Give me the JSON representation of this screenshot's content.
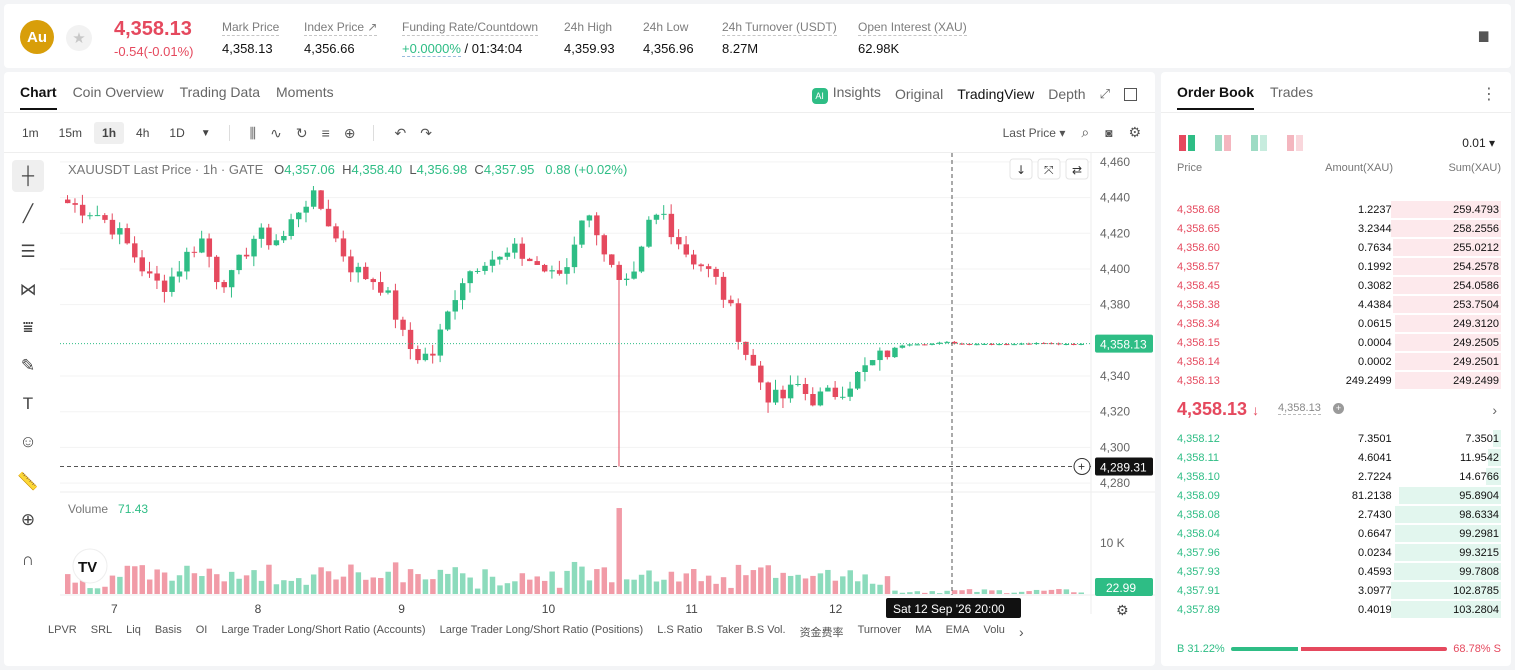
{
  "header": {
    "logo": "Au",
    "price": "4,358.13",
    "change": "-0.54(-0.01%)",
    "stats": [
      {
        "label": "Mark Price",
        "value": "4,358.13"
      },
      {
        "label": "Index Price ↗",
        "value": "4,356.66"
      },
      {
        "label": "Funding Rate/Countdown",
        "value_a": "+0.0000%",
        "value_b": " / 01:34:04"
      },
      {
        "label": "24h High",
        "value": "4,359.93"
      },
      {
        "label": "24h Low",
        "value": "4,356.96"
      },
      {
        "label": "24h Turnover (USDT)",
        "value": "8.27M"
      },
      {
        "label": "Open Interest (XAU)",
        "value": "62.98K"
      }
    ]
  },
  "chart_tabs": [
    "Chart",
    "Coin Overview",
    "Trading Data",
    "Moments"
  ],
  "view_tabs": {
    "insights": "Insights",
    "original": "Original",
    "tradingview": "TradingView",
    "depth": "Depth"
  },
  "timeframes": [
    "1m",
    "15m",
    "1h",
    "4h",
    "1D"
  ],
  "price_type": "Last Price",
  "legend": {
    "symbol": "XAUUSDT Last Price · 1h · GATE",
    "o_label": "O",
    "o": "4,357.06",
    "h_label": "H",
    "h": "4,358.40",
    "l_label": "L",
    "l": "4,356.98",
    "c_label": "C",
    "c": "4,357.95",
    "change": "0.88 (+0.02%)"
  },
  "volume_legend": {
    "label": "Volume",
    "value": "71.43"
  },
  "current_price_tag": "4,358.13",
  "cursor_price_tag": "4,289.31",
  "volume_tag": "22.99",
  "volume_axis_label": "10 K",
  "time_tag": "Sat 12 Sep '26   20:00",
  "indicators": [
    "LPVR",
    "SRL",
    "Liq",
    "Basis",
    "OI",
    "Large Trader Long/Short Ratio (Accounts)",
    "Large Trader Long/Short Ratio (Positions)",
    "L.S Ratio",
    "Taker B.S Vol.",
    "资金费率",
    "Turnover",
    "MA",
    "EMA",
    "Volu"
  ],
  "colors": {
    "up": "#2ebd85",
    "down": "#e5495e",
    "brand": "#d89e0a"
  },
  "chart_data": {
    "type": "candlestick",
    "y_ticks": [
      4460,
      4440,
      4420,
      4400,
      4380,
      4340,
      4320,
      4300,
      4280
    ],
    "x_ticks": [
      "7",
      "8",
      "9",
      "10",
      "11",
      "12"
    ],
    "ylim": [
      4275,
      4465
    ],
    "last_price": 4358.13,
    "cursor_price": 4289.31,
    "candles_count": 137,
    "close_path": [
      4437,
      4434,
      4432,
      4426,
      4418,
      4407,
      4395,
      4390,
      4398,
      4410,
      4417,
      4396,
      4393,
      4408,
      4420,
      4416,
      4418,
      4433,
      4441,
      4432,
      4414,
      4401,
      4396,
      4393,
      4380,
      4358,
      4351,
      4352,
      4372,
      4393,
      4401,
      4407,
      4405,
      4410,
      4406,
      4401,
      4395,
      4402,
      4430,
      4426,
      4404,
      4387,
      4395,
      4425,
      4432,
      4418,
      4407,
      4402,
      4393,
      4378,
      4356,
      4341,
      4327,
      4328,
      4335,
      4327,
      4329,
      4331,
      4337,
      4344,
      4350,
      4355,
      4358,
      4358,
      4358,
      4359,
      4358,
      4358,
      4358,
      4358,
      4358,
      4358,
      4359,
      4358,
      4358,
      4358
    ],
    "volume_ylim": [
      0,
      14000
    ]
  },
  "orderbook": {
    "tabs": [
      "Order Book",
      "Trades"
    ],
    "precision": "0.01",
    "headers": [
      "Price",
      "Amount(XAU)",
      "Sum(XAU)"
    ],
    "asks": [
      [
        "4,358.68",
        "1.2237",
        "259.4793"
      ],
      [
        "4,358.65",
        "3.2344",
        "258.2556"
      ],
      [
        "4,358.60",
        "0.7634",
        "255.0212"
      ],
      [
        "4,358.57",
        "0.1992",
        "254.2578"
      ],
      [
        "4,358.45",
        "0.3082",
        "254.0586"
      ],
      [
        "4,358.38",
        "4.4384",
        "253.7504"
      ],
      [
        "4,358.34",
        "0.0615",
        "249.3120"
      ],
      [
        "4,358.15",
        "0.0004",
        "249.2505"
      ],
      [
        "4,358.14",
        "0.0002",
        "249.2501"
      ],
      [
        "4,358.13",
        "249.2499",
        "249.2499"
      ]
    ],
    "ask_depth": [
      1.0,
      1.0,
      0.98,
      0.98,
      0.98,
      0.98,
      0.96,
      0.96,
      0.96,
      0.96
    ],
    "mid_price": "4,358.13",
    "mid_arrow": "↓",
    "mid_mark": "4,358.13",
    "bids": [
      [
        "4,358.12",
        "7.3501",
        "7.3501"
      ],
      [
        "4,358.11",
        "4.6041",
        "11.9542"
      ],
      [
        "4,358.10",
        "2.7224",
        "14.6766"
      ],
      [
        "4,358.09",
        "81.2138",
        "95.8904"
      ],
      [
        "4,358.08",
        "2.7430",
        "98.6334"
      ],
      [
        "4,358.04",
        "0.6647",
        "99.2981"
      ],
      [
        "4,357.96",
        "0.0234",
        "99.3215"
      ],
      [
        "4,357.93",
        "0.4593",
        "99.7808"
      ],
      [
        "4,357.91",
        "3.0977",
        "102.8785"
      ],
      [
        "4,357.89",
        "0.4019",
        "103.2804"
      ]
    ],
    "bid_depth": [
      0.07,
      0.12,
      0.14,
      0.93,
      0.96,
      0.96,
      0.96,
      0.97,
      1.0,
      1.0
    ],
    "buy_ratio_label": "B",
    "buy_ratio": "31.22%",
    "sell_ratio": "68.78%",
    "sell_ratio_label": "S",
    "buy_fraction": 0.3122
  }
}
